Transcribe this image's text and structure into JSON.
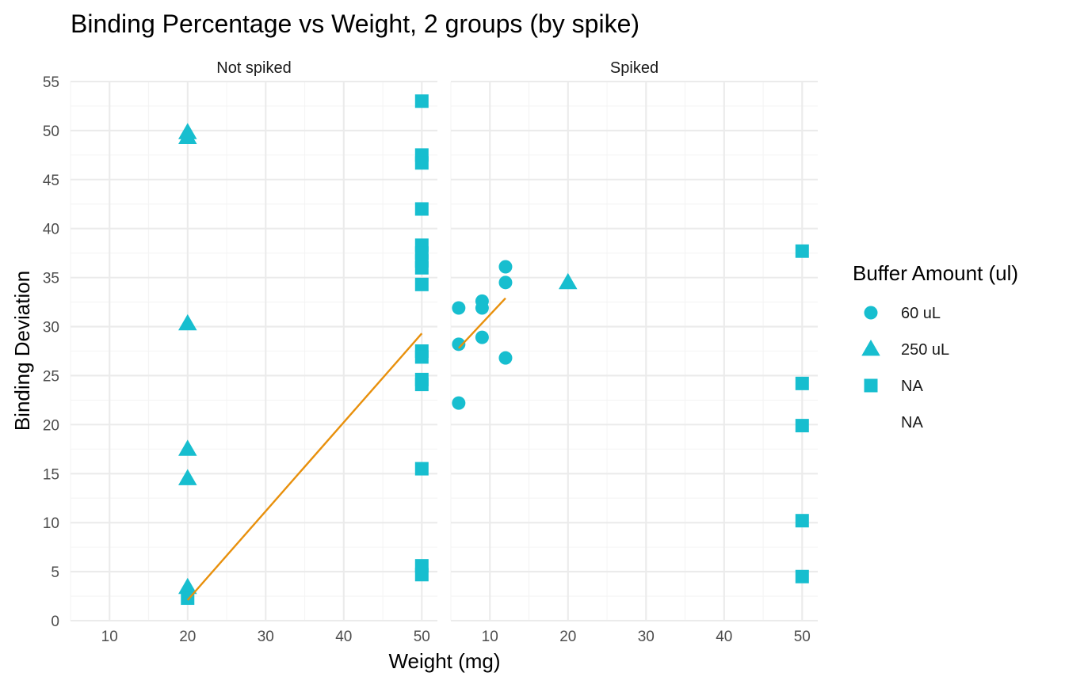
{
  "chart_data": {
    "type": "scatter",
    "title": "Binding Percentage vs Weight, 2 groups (by spike)",
    "xlabel": "Weight (mg)",
    "ylabel": "Binding Deviation",
    "xlim": [
      5,
      52
    ],
    "ylim": [
      0,
      55
    ],
    "x_ticks": [
      10,
      20,
      30,
      40,
      50
    ],
    "y_ticks": [
      0,
      5,
      10,
      15,
      20,
      25,
      30,
      35,
      40,
      45,
      50,
      55
    ],
    "grid": true,
    "point_color": "#17BECF",
    "line_color": "#E8900C",
    "legend": {
      "title": "Buffer Amount (ul)",
      "position": "right",
      "entries": [
        {
          "label": "60 uL",
          "shape": "circle"
        },
        {
          "label": "250 uL",
          "shape": "triangle"
        },
        {
          "label": "NA",
          "shape": "square"
        },
        {
          "label": "NA",
          "shape": "none"
        }
      ]
    },
    "panels": [
      {
        "strip": "Not spiked",
        "points": [
          {
            "x": 20,
            "y": 49.3,
            "shape": "triangle"
          },
          {
            "x": 20,
            "y": 49.8,
            "shape": "triangle"
          },
          {
            "x": 20,
            "y": 30.3,
            "shape": "triangle"
          },
          {
            "x": 20,
            "y": 17.5,
            "shape": "triangle"
          },
          {
            "x": 20,
            "y": 14.5,
            "shape": "triangle"
          },
          {
            "x": 20,
            "y": 3.4,
            "shape": "triangle"
          },
          {
            "x": 20,
            "y": 2.3,
            "shape": "square"
          },
          {
            "x": 50,
            "y": 53.0,
            "shape": "square"
          },
          {
            "x": 50,
            "y": 47.5,
            "shape": "square"
          },
          {
            "x": 50,
            "y": 46.7,
            "shape": "square"
          },
          {
            "x": 50,
            "y": 42.0,
            "shape": "square"
          },
          {
            "x": 50,
            "y": 38.3,
            "shape": "square"
          },
          {
            "x": 50,
            "y": 37.5,
            "shape": "square"
          },
          {
            "x": 50,
            "y": 36.7,
            "shape": "square"
          },
          {
            "x": 50,
            "y": 36.0,
            "shape": "square"
          },
          {
            "x": 50,
            "y": 34.3,
            "shape": "square"
          },
          {
            "x": 50,
            "y": 27.5,
            "shape": "square"
          },
          {
            "x": 50,
            "y": 26.9,
            "shape": "square"
          },
          {
            "x": 50,
            "y": 24.6,
            "shape": "square"
          },
          {
            "x": 50,
            "y": 24.1,
            "shape": "square"
          },
          {
            "x": 50,
            "y": 15.5,
            "shape": "square"
          },
          {
            "x": 50,
            "y": 5.6,
            "shape": "square"
          },
          {
            "x": 50,
            "y": 4.7,
            "shape": "square"
          }
        ],
        "fit_line": {
          "x": [
            20,
            50
          ],
          "y": [
            2.1,
            29.3
          ]
        }
      },
      {
        "strip": "Spiked",
        "points": [
          {
            "x": 6,
            "y": 31.9,
            "shape": "circle"
          },
          {
            "x": 6,
            "y": 28.2,
            "shape": "circle"
          },
          {
            "x": 6,
            "y": 22.2,
            "shape": "circle"
          },
          {
            "x": 9,
            "y": 32.6,
            "shape": "circle"
          },
          {
            "x": 9,
            "y": 31.9,
            "shape": "circle"
          },
          {
            "x": 9,
            "y": 28.9,
            "shape": "circle"
          },
          {
            "x": 12,
            "y": 36.1,
            "shape": "circle"
          },
          {
            "x": 12,
            "y": 34.5,
            "shape": "circle"
          },
          {
            "x": 12,
            "y": 26.8,
            "shape": "circle"
          },
          {
            "x": 20,
            "y": 34.5,
            "shape": "triangle"
          },
          {
            "x": 50,
            "y": 37.7,
            "shape": "square"
          },
          {
            "x": 50,
            "y": 24.2,
            "shape": "square"
          },
          {
            "x": 50,
            "y": 19.9,
            "shape": "square"
          },
          {
            "x": 50,
            "y": 10.2,
            "shape": "square"
          },
          {
            "x": 50,
            "y": 4.5,
            "shape": "square"
          }
        ],
        "fit_line": {
          "x": [
            6,
            12
          ],
          "y": [
            27.8,
            32.9
          ]
        }
      }
    ]
  }
}
